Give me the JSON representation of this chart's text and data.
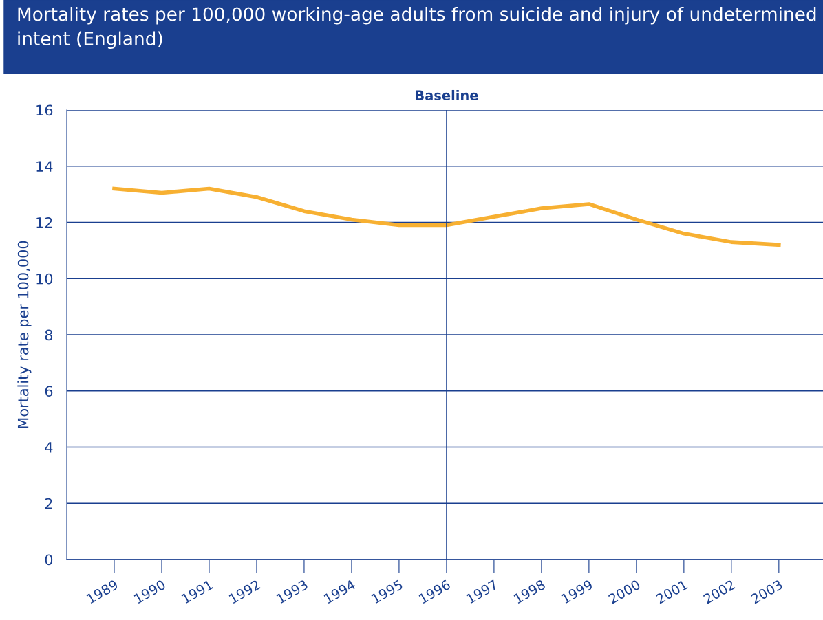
{
  "chart_data": {
    "type": "line",
    "title": "Mortality rates per 100,000 working-age adults from suicide and injury of undetermined intent (England)",
    "ylabel": "Mortality rate per 100,000",
    "categories": [
      "1989",
      "1990",
      "1991",
      "1992",
      "1993",
      "1994",
      "1995",
      "1996",
      "1997",
      "1998",
      "1999",
      "2000",
      "2001",
      "2002",
      "2003"
    ],
    "series": [
      {
        "color": "#f7b032",
        "values": [
          13.2,
          13.05,
          13.2,
          12.9,
          12.4,
          12.1,
          11.9,
          11.9,
          12.2,
          12.5,
          12.65,
          12.1,
          11.6,
          11.3,
          11.2
        ]
      }
    ],
    "ylim": [
      0,
      16
    ],
    "yticks": [
      0,
      2,
      4,
      6,
      8,
      10,
      12,
      14,
      16
    ],
    "ref_lines": [
      {
        "axis": "x",
        "value": "1996",
        "label": "Baseline",
        "color": "#1a3f8f"
      }
    ],
    "grid": "y",
    "legend": false,
    "marker": "none",
    "line_style": "solid"
  }
}
